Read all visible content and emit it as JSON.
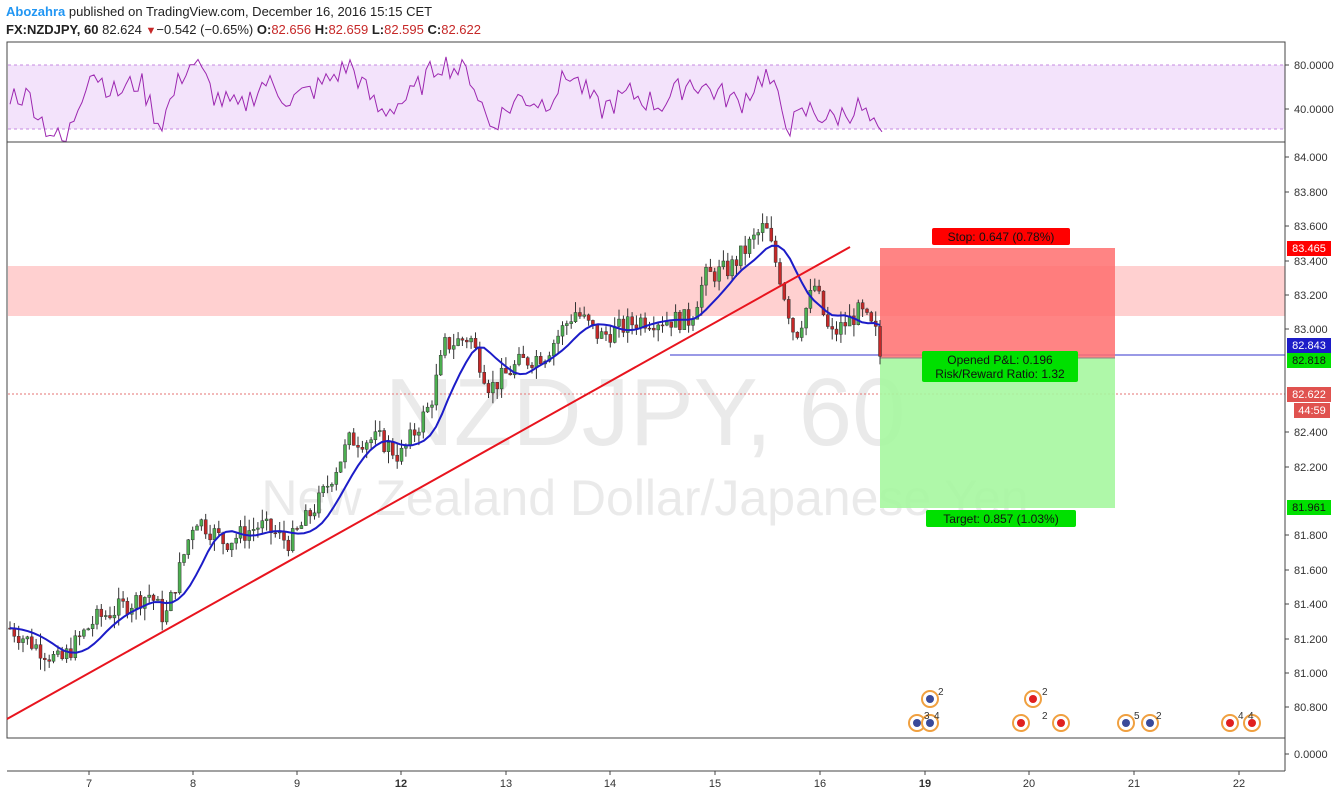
{
  "header": {
    "author": "Abozahra",
    "published": "published on TradingView.com, December 16, 2016 15:15 CET",
    "symbol": "FX:NZDJPY, 60",
    "last": "82.624",
    "change": "−0.542 (−0.65%)",
    "open_label": "O:",
    "open": "82.656",
    "high_label": "H:",
    "high": "82.659",
    "low_label": "L:",
    "low": "82.595",
    "close_label": "C:",
    "close": "82.622"
  },
  "watermark": {
    "line1": "NZDJPY, 60",
    "line2": "New Zealand Dollar/Japanese Yen"
  },
  "colors": {
    "up": "#4caf50",
    "down": "#c62828",
    "ma": "#1c1cc8",
    "trend": "#e8141e",
    "rsi": "#9c27b0",
    "rsi_bg": "#f3e3fb",
    "zone": "#ffc8c8",
    "stop_fill": "#ff6e6e",
    "target_fill": "#a6f7a0",
    "label_red": "#ff0000",
    "label_green": "#00e000"
  },
  "price_axis": {
    "labels": [
      "84.000",
      "83.800",
      "83.600",
      "83.400",
      "83.200",
      "83.000",
      "82.400",
      "82.200",
      "81.800",
      "81.600",
      "81.400",
      "81.200",
      "81.000",
      "80.800",
      "0.0000"
    ]
  },
  "rsi_axis": {
    "labels": [
      "80.0000",
      "40.0000"
    ]
  },
  "time_axis": {
    "labels": [
      "7",
      "8",
      "9",
      "12",
      "13",
      "14",
      "15",
      "16",
      "19",
      "20",
      "21",
      "22"
    ]
  },
  "badges": {
    "stop_price": "83.465",
    "ma_price": "82.843",
    "entry_price": "82.818",
    "last_price": "82.622",
    "countdown": "44:59",
    "target_price": "81.961"
  },
  "position": {
    "stop_label": "Stop: 0.647 (0.78%)",
    "pnl_label": "Opened P&L: 0.196",
    "rr_label": "Risk/Reward Ratio: 1.32",
    "target_label": "Target: 0.857 (1.03%)"
  },
  "events": [
    {
      "group": "a",
      "counts": [
        "2",
        "3",
        "4"
      ]
    },
    {
      "group": "b",
      "counts": [
        "2",
        "2"
      ]
    },
    {
      "group": "c",
      "counts": [
        "5",
        "2"
      ]
    },
    {
      "group": "d",
      "counts": [
        "4",
        "4"
      ]
    }
  ],
  "chart_data": {
    "type": "candlestick",
    "symbol": "FX:NZDJPY",
    "interval": "60",
    "x_labels": [
      "7",
      "8",
      "9",
      "12",
      "13",
      "14",
      "15",
      "16",
      "19",
      "20",
      "21",
      "22"
    ],
    "ylim": [
      80.6,
      84.1
    ],
    "series": [
      {
        "name": "price-close-approx",
        "x": [
          "7",
          "8",
          "9",
          "12",
          "13",
          "14",
          "15",
          "16"
        ],
        "values": [
          81.2,
          81.7,
          81.8,
          82.3,
          82.7,
          82.9,
          83.3,
          83.1
        ]
      },
      {
        "name": "moving-average",
        "x": [
          "7",
          "8",
          "9",
          "12",
          "13",
          "14",
          "15",
          "16"
        ],
        "values": [
          81.2,
          81.4,
          81.8,
          82.3,
          82.8,
          83.05,
          83.35,
          82.95
        ]
      }
    ],
    "trendline": {
      "x": [
        "6",
        "16"
      ],
      "y": [
        80.73,
        83.48
      ]
    },
    "resistance_zone": {
      "from": 83.07,
      "to": 83.37
    },
    "position": {
      "type": "short",
      "entry": 82.818,
      "stop": 83.465,
      "target": 81.961
    },
    "horizontal_line": 82.843,
    "last_price": 82.622,
    "rsi": {
      "ylim": [
        20,
        100
      ],
      "levels": [
        80,
        40
      ],
      "last": 30
    }
  }
}
